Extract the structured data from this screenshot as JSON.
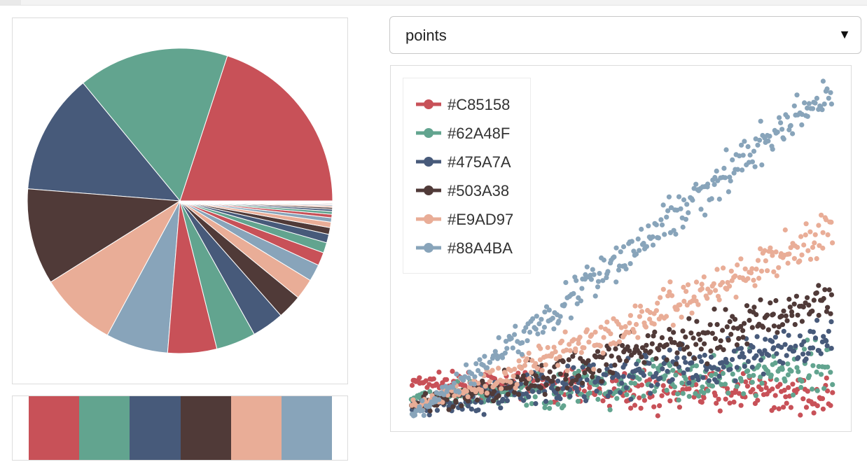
{
  "header": {
    "title": ""
  },
  "type_select": {
    "value": "points",
    "arrow": "▼"
  },
  "palette": [
    "#C85158",
    "#62A48F",
    "#475A7A",
    "#503A38",
    "#E9AD97",
    "#88A4BA"
  ],
  "colors": {
    "accent": "#C85158",
    "panel_border": "#dcdcdc",
    "page_background": "#ffffff"
  },
  "legend": {
    "items": [
      {
        "label": "#C85158",
        "color": "#C85158"
      },
      {
        "label": "#62A48F",
        "color": "#62A48F"
      },
      {
        "label": "#475A7A",
        "color": "#475A7A"
      },
      {
        "label": "#503A38",
        "color": "#503A38"
      },
      {
        "label": "#E9AD97",
        "color": "#E9AD97"
      },
      {
        "label": "#88A4BA",
        "color": "#88A4BA"
      }
    ]
  },
  "chart_data": [
    {
      "type": "pie",
      "title": "",
      "values": [
        100,
        80,
        64,
        51,
        41,
        33,
        26,
        21,
        17,
        13,
        11,
        9,
        7,
        5.5,
        4.5,
        3.6,
        2.9,
        2.3,
        1.8,
        1.5,
        1.2,
        0.95,
        0.76,
        0.61,
        0.49,
        0.39,
        0.31,
        0.25,
        0.2,
        0.16,
        0.13,
        0.1
      ],
      "colors": [
        "#C85158",
        "#62A48F",
        "#475A7A",
        "#503A38",
        "#E9AD97",
        "#88A4BA"
      ]
    },
    {
      "type": "scatter",
      "title": "",
      "x_range": [
        0,
        100
      ],
      "y_range": [
        0,
        100
      ],
      "points_per_series": 300,
      "series": [
        {
          "name": "#C85158",
          "color": "#C85158",
          "start": 10,
          "end": 6,
          "spread": 2.6
        },
        {
          "name": "#62A48F",
          "color": "#62A48F",
          "start": 5,
          "end": 15,
          "spread": 3.2
        },
        {
          "name": "#475A7A",
          "color": "#475A7A",
          "start": 3,
          "end": 22,
          "spread": 3.2
        },
        {
          "name": "#503A38",
          "color": "#503A38",
          "start": 3,
          "end": 35,
          "spread": 3.0
        },
        {
          "name": "#E9AD97",
          "color": "#E9AD97",
          "start": 3,
          "end": 55,
          "spread": 3.2
        },
        {
          "name": "#88A4BA",
          "color": "#88A4BA",
          "start": 0,
          "end": 98,
          "spread": 3.0
        }
      ]
    }
  ]
}
